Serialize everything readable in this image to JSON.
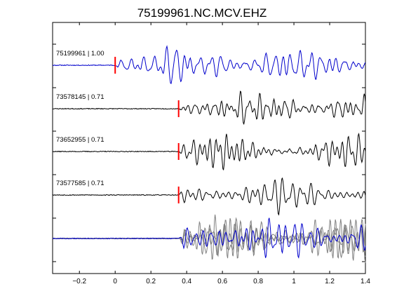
{
  "chart_data": {
    "type": "line",
    "title": "75199961.NC.MCV.EHZ",
    "xlabel": "",
    "ylabel": "",
    "xlim": [
      -0.35,
      1.4
    ],
    "x_ticks": [
      -0.2,
      0,
      0.2,
      0.4,
      0.6,
      0.8,
      1,
      1.2,
      1.4
    ],
    "x_tick_labels": [
      "−0.2",
      "0",
      "0.2",
      "0.4",
      "0.6",
      "0.8",
      "1",
      "1.2",
      "1.4"
    ],
    "grid": false,
    "legend": "none",
    "colors": {
      "reference": "#0000cc",
      "matched": "#000000",
      "overlay_gray": "#808080",
      "pick": "#ff0000",
      "axes": "#000000"
    },
    "traces": [
      {
        "label": "75199961 | 1.00",
        "pick_time": 0.0,
        "color": "#0000cc",
        "seed": 11
      },
      {
        "label": "73578145 | 0.71",
        "pick_time": 0.355,
        "color": "#000000",
        "seed": 23
      },
      {
        "label": "73652955 | 0.71",
        "pick_time": 0.355,
        "color": "#000000",
        "seed": 37
      },
      {
        "label": "73577585 | 0.71",
        "pick_time": 0.355,
        "color": "#000000",
        "seed": 53
      }
    ],
    "stack": {
      "onset_time": 0.355,
      "colors": [
        "#808080",
        "#808080",
        "#808080",
        "#0000cc"
      ]
    }
  }
}
